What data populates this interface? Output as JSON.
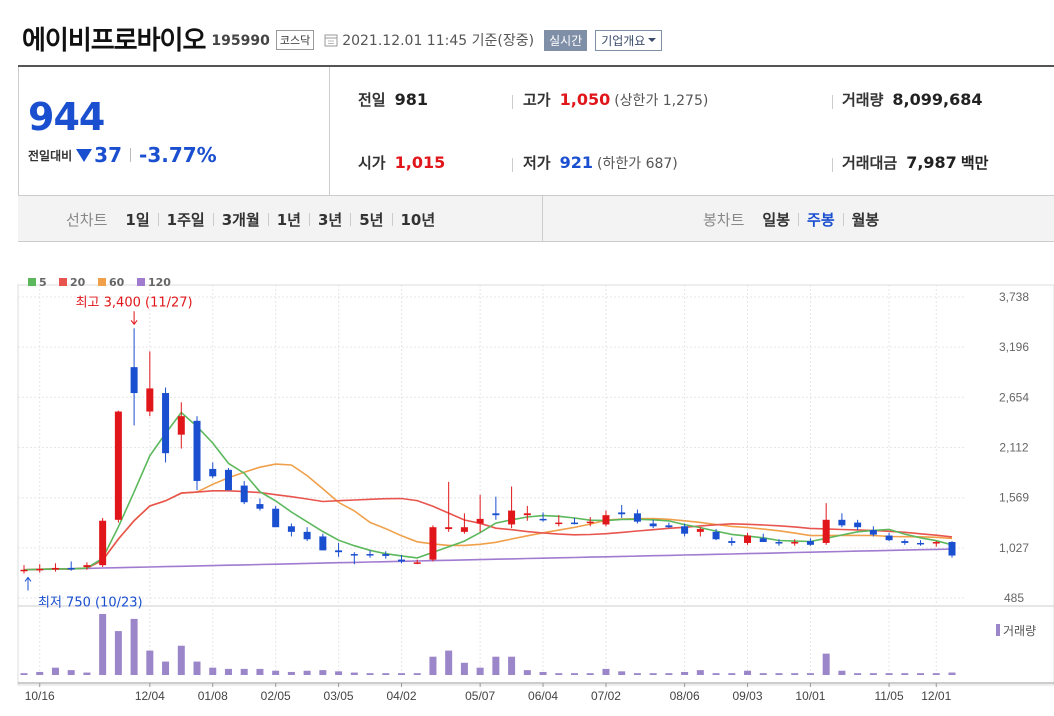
{
  "header": {
    "stock_name": "에이비프로바이오",
    "stock_code": "195990",
    "market": "코스닥",
    "timestamp": "2021.12.01 11:45 기준(장중)",
    "realtime_label": "실시간",
    "overview_label": "기업개요"
  },
  "price": {
    "current": "944",
    "change_label": "전일대비",
    "change_amount": "37",
    "change_percent": "-3.77%",
    "direction": "down"
  },
  "stats": {
    "prev_close_label": "전일",
    "prev_close": "981",
    "high_label": "고가",
    "high": "1,050",
    "upper_limit": "(상한가 1,275)",
    "volume_label": "거래량",
    "volume": "8,099,684",
    "open_label": "시가",
    "open": "1,015",
    "low_label": "저가",
    "low": "921",
    "lower_limit": "(하한가 687)",
    "amount_label": "거래대금",
    "amount": "7,987",
    "amount_unit": "백만"
  },
  "period_bar": {
    "line_label": "선차트",
    "line_periods": [
      "1일",
      "1주일",
      "3개월",
      "1년",
      "3년",
      "5년",
      "10년"
    ],
    "candle_label": "봉차트",
    "candle_periods": [
      "일봉",
      "주봉",
      "월봉"
    ],
    "active_candle": "주봉"
  },
  "colors": {
    "up": "#e0161a",
    "down": "#1a4fd0",
    "ma5": "#5cb85c",
    "ma20": "#e8554e",
    "ma60": "#f0a04a",
    "ma120": "#a07bd0",
    "volume": "#9b86c9"
  },
  "chart_data": {
    "type": "candlestick",
    "legend": [
      {
        "name": "5",
        "color": "#5cb85c"
      },
      {
        "name": "20",
        "color": "#e8554e"
      },
      {
        "name": "60",
        "color": "#f0a04a"
      },
      {
        "name": "120",
        "color": "#a07bd0"
      }
    ],
    "ylim": [
      485,
      3738
    ],
    "y_ticks": [
      "3,738",
      "3,196",
      "2,654",
      "2,112",
      "1,569",
      "1,027",
      "485"
    ],
    "x_ticks": [
      {
        "i": 1,
        "label": "10/16"
      },
      {
        "i": 8,
        "label": "12/04"
      },
      {
        "i": 12,
        "label": "01/08"
      },
      {
        "i": 16,
        "label": "02/05"
      },
      {
        "i": 20,
        "label": "03/05"
      },
      {
        "i": 24,
        "label": "04/02"
      },
      {
        "i": 29,
        "label": "05/07"
      },
      {
        "i": 33,
        "label": "06/04"
      },
      {
        "i": 37,
        "label": "07/02"
      },
      {
        "i": 42,
        "label": "08/06"
      },
      {
        "i": 46,
        "label": "09/03"
      },
      {
        "i": 50,
        "label": "10/01"
      },
      {
        "i": 55,
        "label": "11/05"
      },
      {
        "i": 58,
        "label": "12/01"
      }
    ],
    "annotation_high": "최고 3,400 (11/27)",
    "annotation_low": "최저 750 (10/23)",
    "volume_label": "거래량",
    "candles": [
      [
        780,
        840,
        750,
        790
      ],
      [
        790,
        850,
        760,
        800
      ],
      [
        800,
        860,
        770,
        810
      ],
      [
        810,
        880,
        780,
        800
      ],
      [
        820,
        870,
        790,
        840
      ],
      [
        840,
        1350,
        820,
        1320
      ],
      [
        1330,
        2510,
        1300,
        2500
      ],
      [
        2980,
        3400,
        2350,
        2700
      ],
      [
        2500,
        3150,
        2450,
        2750
      ],
      [
        2700,
        2760,
        1950,
        2050
      ],
      [
        2250,
        2600,
        2100,
        2450
      ],
      [
        2400,
        2450,
        1650,
        1750
      ],
      [
        1880,
        1950,
        1780,
        1800
      ],
      [
        1870,
        1890,
        1650,
        1650
      ],
      [
        1700,
        1750,
        1500,
        1520
      ],
      [
        1500,
        1560,
        1430,
        1450
      ],
      [
        1450,
        1480,
        1250,
        1250
      ],
      [
        1260,
        1290,
        1150,
        1200
      ],
      [
        1200,
        1250,
        1100,
        1120
      ],
      [
        1150,
        1180,
        1000,
        1000
      ],
      [
        1000,
        1080,
        930,
        980
      ],
      [
        960,
        980,
        850,
        950
      ],
      [
        960,
        1000,
        920,
        950
      ],
      [
        960,
        990,
        910,
        940
      ],
      [
        900,
        950,
        860,
        880
      ],
      [
        870,
        900,
        850,
        870
      ],
      [
        900,
        1270,
        880,
        1250
      ],
      [
        1230,
        1740,
        1200,
        1250
      ],
      [
        1200,
        1400,
        1180,
        1250
      ],
      [
        1290,
        1600,
        1200,
        1340
      ],
      [
        1400,
        1580,
        1330,
        1380
      ],
      [
        1280,
        1690,
        1240,
        1430
      ],
      [
        1380,
        1480,
        1320,
        1400
      ],
      [
        1340,
        1410,
        1310,
        1330
      ],
      [
        1290,
        1380,
        1260,
        1300
      ],
      [
        1300,
        1350,
        1280,
        1290
      ],
      [
        1300,
        1360,
        1260,
        1310
      ],
      [
        1280,
        1430,
        1260,
        1380
      ],
      [
        1410,
        1490,
        1350,
        1390
      ],
      [
        1400,
        1440,
        1290,
        1310
      ],
      [
        1290,
        1330,
        1240,
        1260
      ],
      [
        1270,
        1300,
        1240,
        1250
      ],
      [
        1260,
        1290,
        1150,
        1180
      ],
      [
        1200,
        1250,
        1150,
        1230
      ],
      [
        1200,
        1230,
        1110,
        1120
      ],
      [
        1100,
        1140,
        1050,
        1080
      ],
      [
        1080,
        1190,
        1060,
        1160
      ],
      [
        1130,
        1180,
        1090,
        1090
      ],
      [
        1090,
        1120,
        1050,
        1080
      ],
      [
        1080,
        1120,
        1050,
        1090
      ],
      [
        1100,
        1130,
        1050,
        1060
      ],
      [
        1080,
        1510,
        1060,
        1330
      ],
      [
        1330,
        1400,
        1250,
        1270
      ],
      [
        1300,
        1330,
        1220,
        1250
      ],
      [
        1220,
        1260,
        1150,
        1170
      ],
      [
        1160,
        1190,
        1100,
        1110
      ],
      [
        1100,
        1120,
        1060,
        1080
      ],
      [
        1080,
        1110,
        1050,
        1070
      ],
      [
        1080,
        1100,
        1040,
        1090
      ],
      [
        1090,
        1100,
        921,
        944
      ]
    ],
    "volumes": [
      3,
      5,
      12,
      8,
      4,
      100,
      72,
      92,
      40,
      22,
      48,
      22,
      12,
      10,
      10,
      10,
      7,
      5,
      7,
      8,
      6,
      4,
      3,
      3,
      3,
      3,
      30,
      40,
      20,
      12,
      30,
      30,
      8,
      5,
      3,
      3,
      3,
      10,
      6,
      3,
      3,
      3,
      5,
      8,
      3,
      3,
      7,
      3,
      3,
      3,
      3,
      35,
      7,
      3,
      3,
      3,
      3,
      3,
      3,
      4
    ]
  }
}
